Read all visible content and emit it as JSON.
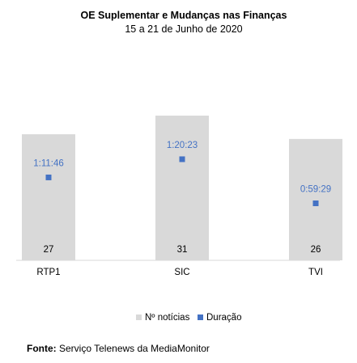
{
  "chart_data": {
    "type": "bar",
    "title": "OE Suplementar e Mudanças nas Finanças",
    "subtitle": "15 a 21 de Junho de 2020",
    "categories": [
      "RTP1",
      "SIC",
      "TVI"
    ],
    "series": [
      {
        "name": "Nº notícias",
        "type": "bar",
        "values": [
          27,
          31,
          26
        ],
        "color": "#d9d9d9"
      },
      {
        "name": "Duração",
        "type": "scatter",
        "values": [
          "1:11:46",
          "1:20:23",
          "0:59:29"
        ],
        "seconds": [
          4306,
          4823,
          3569
        ],
        "color": "#4472c4"
      }
    ],
    "label_colors": {
      "duration": "#4472c4",
      "count": "#000000"
    },
    "legend_position": "bottom",
    "grid": false
  },
  "source": {
    "label": "Fonte:",
    "text": "Serviço Telenews da MediaMonitor"
  }
}
